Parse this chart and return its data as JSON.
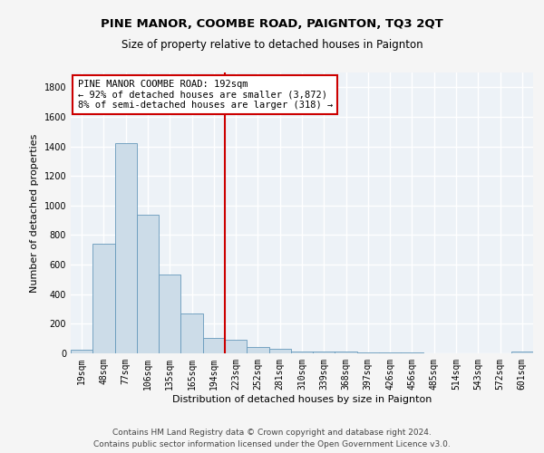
{
  "title": "PINE MANOR, COOMBE ROAD, PAIGNTON, TQ3 2QT",
  "subtitle": "Size of property relative to detached houses in Paignton",
  "xlabel": "Distribution of detached houses by size in Paignton",
  "ylabel": "Number of detached properties",
  "bar_labels": [
    "19sqm",
    "48sqm",
    "77sqm",
    "106sqm",
    "135sqm",
    "165sqm",
    "194sqm",
    "223sqm",
    "252sqm",
    "281sqm",
    "310sqm",
    "339sqm",
    "368sqm",
    "397sqm",
    "426sqm",
    "456sqm",
    "485sqm",
    "514sqm",
    "543sqm",
    "572sqm",
    "601sqm"
  ],
  "bar_values": [
    22,
    742,
    1421,
    937,
    533,
    268,
    106,
    93,
    43,
    28,
    15,
    12,
    10,
    8,
    5,
    4,
    3,
    2,
    2,
    2,
    12
  ],
  "bar_color": "#ccdce8",
  "bar_edge_color": "#6699bb",
  "vline_x": 6.5,
  "vline_color": "#cc0000",
  "annotation_text": "PINE MANOR COOMBE ROAD: 192sqm\n← 92% of detached houses are smaller (3,872)\n8% of semi-detached houses are larger (318) →",
  "annotation_box_color": "#ffffff",
  "annotation_box_edge": "#cc0000",
  "ylim": [
    0,
    1900
  ],
  "yticks": [
    0,
    200,
    400,
    600,
    800,
    1000,
    1200,
    1400,
    1600,
    1800
  ],
  "background_color": "#edf2f7",
  "grid_color": "#ffffff",
  "footer_line1": "Contains HM Land Registry data © Crown copyright and database right 2024.",
  "footer_line2": "Contains public sector information licensed under the Open Government Licence v3.0.",
  "title_fontsize": 9.5,
  "subtitle_fontsize": 8.5,
  "axis_label_fontsize": 8,
  "tick_fontsize": 7,
  "annotation_fontsize": 7.5,
  "footer_fontsize": 6.5
}
